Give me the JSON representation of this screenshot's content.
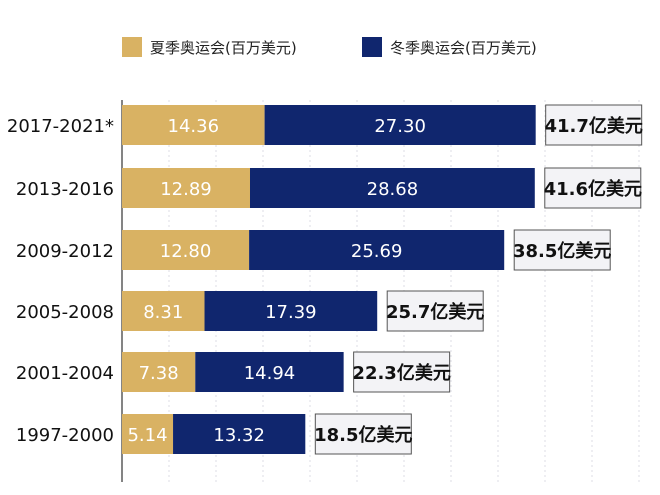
{
  "chart_data": {
    "type": "bar",
    "orientation": "horizontal",
    "stacked": true,
    "categories": [
      "2017-2021*",
      "2013-2016",
      "2009-2012",
      "2005-2008",
      "2001-2004",
      "1997-2000"
    ],
    "series": [
      {
        "name": "夏季奥运会(百万美元)",
        "color": "#d9b263",
        "values": [
          14.36,
          12.89,
          12.8,
          8.31,
          7.38,
          5.14
        ],
        "labels": [
          "14.36",
          "12.89",
          "12.80",
          "8.31",
          "7.38",
          "5.14"
        ]
      },
      {
        "name": "冬季奥运会(百万美元)",
        "color": "#10266e",
        "values": [
          27.3,
          28.68,
          25.69,
          17.39,
          14.94,
          13.32
        ],
        "labels": [
          "27.30",
          "28.68",
          "25.69",
          "17.39",
          "14.94",
          "13.32"
        ]
      }
    ],
    "totals": [
      "41.7亿美元",
      "41.6亿美元",
      "38.5亿美元",
      "25.7亿美元",
      "22.3亿美元",
      "18.5亿美元"
    ],
    "legend_position": "top",
    "grid": true,
    "xlim": [
      0,
      52
    ]
  }
}
